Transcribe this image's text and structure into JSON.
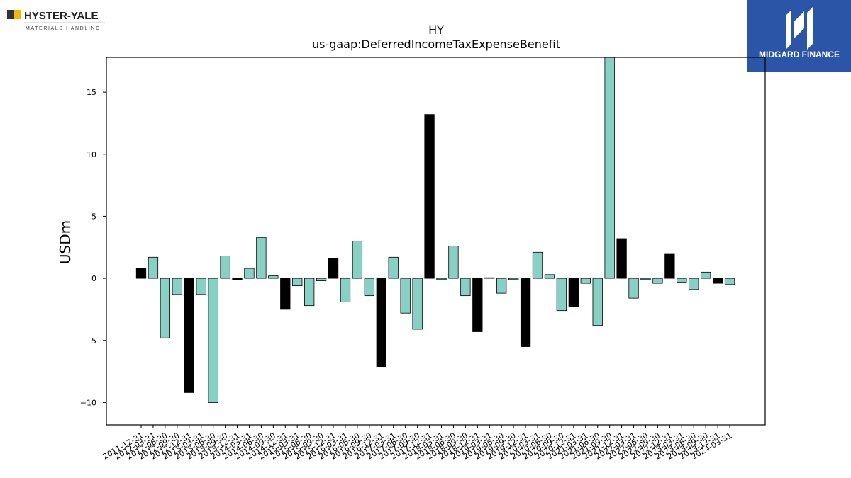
{
  "logos": {
    "left_name": "HYSTER-YALE",
    "left_sub": "MATERIALS HANDLING",
    "right_name": "MIDGARD FINANCE",
    "right_bg": "#2b56a8"
  },
  "colors": {
    "highlight": "#000000",
    "default": "#88d0c3"
  },
  "chart_data": {
    "type": "bar",
    "title": "HY",
    "subtitle": "us-gaap:DeferredIncomeTaxExpenseBenefit",
    "xlabel": "",
    "ylabel": "USDm",
    "ylim": [
      -11.8,
      17.8
    ],
    "yticks": [
      -10,
      -5,
      0,
      5,
      10,
      15
    ],
    "grid": false,
    "categories": [
      "2011-12-31",
      "2012-03-31",
      "2012-06-30",
      "2012-09-30",
      "2012-12-31",
      "2013-03-31",
      "2013-06-30",
      "2013-09-30",
      "2013-12-31",
      "2014-03-31",
      "2014-06-30",
      "2014-09-30",
      "2014-12-31",
      "2015-03-31",
      "2015-06-30",
      "2015-09-30",
      "2015-12-31",
      "2016-03-31",
      "2016-06-30",
      "2016-09-30",
      "2016-12-31",
      "2017-03-31",
      "2017-06-30",
      "2017-09-30",
      "2017-12-31",
      "2018-03-31",
      "2018-06-30",
      "2018-09-30",
      "2018-12-31",
      "2019-03-31",
      "2019-06-30",
      "2019-09-30",
      "2019-12-31",
      "2020-03-31",
      "2020-06-30",
      "2020-09-30",
      "2020-12-31",
      "2021-03-31",
      "2021-06-30",
      "2021-09-30",
      "2021-12-31",
      "2022-03-31",
      "2022-06-30",
      "2022-09-30",
      "2022-12-31",
      "2023-03-31",
      "2023-06-30",
      "2023-09-30",
      "2023-12-31",
      "2024-03-31"
    ],
    "values": [
      0.8,
      1.7,
      -4.8,
      -1.3,
      -9.2,
      -1.3,
      -10.0,
      1.8,
      -0.1,
      0.8,
      3.3,
      0.2,
      -2.5,
      -0.6,
      -2.2,
      -0.2,
      1.6,
      -1.9,
      3.0,
      -1.4,
      -7.1,
      1.7,
      -2.8,
      -4.1,
      13.2,
      -0.1,
      2.6,
      -1.4,
      -4.3,
      0.05,
      -1.2,
      -0.1,
      -5.5,
      2.1,
      0.3,
      -2.6,
      -2.3,
      -0.4,
      -3.8,
      17.8,
      3.2,
      -1.6,
      -0.1,
      -0.4,
      2.0,
      -0.3,
      -0.9,
      0.5,
      -0.4,
      -0.5
    ],
    "highlighted": [
      true,
      false,
      false,
      false,
      true,
      false,
      false,
      false,
      true,
      false,
      false,
      false,
      true,
      false,
      false,
      false,
      true,
      false,
      false,
      false,
      true,
      false,
      false,
      false,
      true,
      false,
      false,
      false,
      true,
      false,
      false,
      false,
      true,
      false,
      false,
      false,
      true,
      false,
      false,
      false,
      true,
      false,
      false,
      false,
      true,
      false,
      false,
      false,
      true,
      false
    ]
  }
}
